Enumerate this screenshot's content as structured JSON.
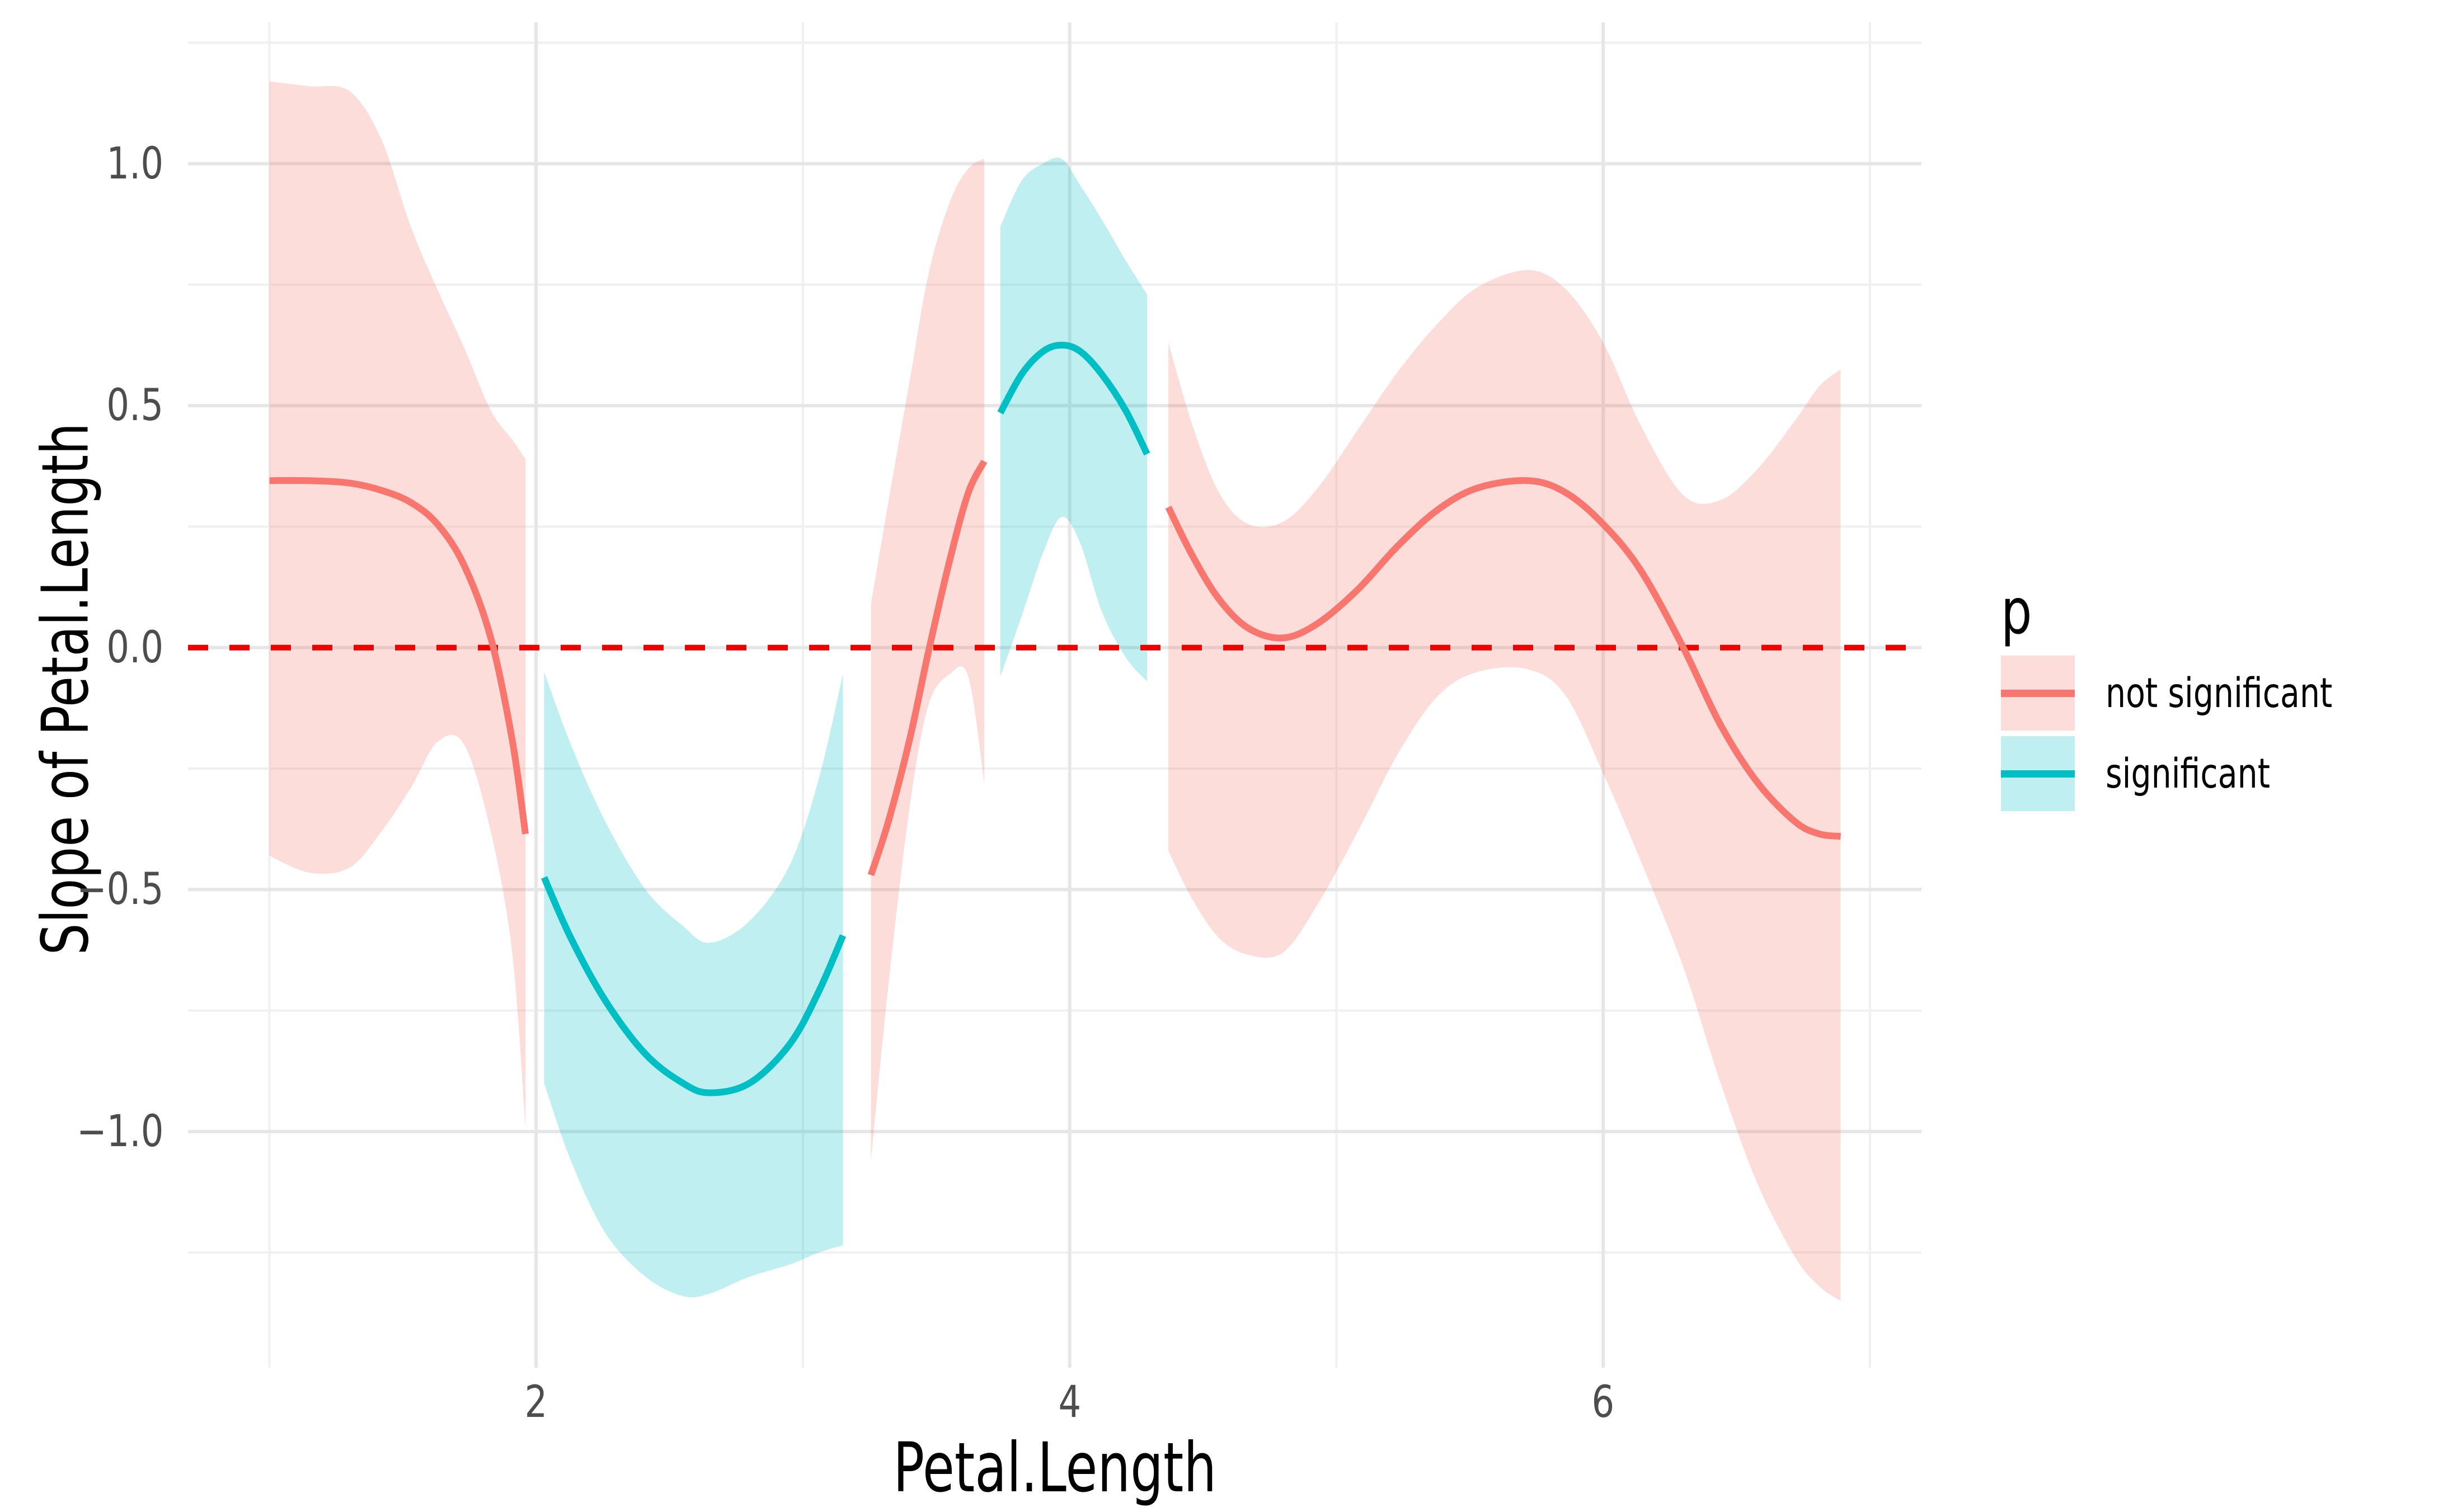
{
  "page": {
    "background": "#ffffff"
  },
  "chart_data": {
    "type": "line",
    "title": "",
    "xlabel": "Petal.Length",
    "ylabel": "Slope of Petal.Length",
    "xlim": [
      0.695,
      7.193
    ],
    "ylim": [
      -1.488,
      1.292
    ],
    "grid": {
      "on": true,
      "major_color": "#e6e6e6",
      "minor_color": "#f0f0f0",
      "major_width": 6,
      "minor_width": 4
    },
    "x_major_ticks": [
      {
        "v": 2,
        "label": "2"
      },
      {
        "v": 4,
        "label": "4"
      },
      {
        "v": 6,
        "label": "6"
      }
    ],
    "x_minor_gridlines": [
      1,
      3,
      5,
      7
    ],
    "y_major_ticks": [
      {
        "v": 1.0,
        "label": "1.0"
      },
      {
        "v": 0.5,
        "label": "0.5"
      },
      {
        "v": 0.0,
        "label": "0.0"
      },
      {
        "v": -0.5,
        "label": "−0.5"
      },
      {
        "v": -1.0,
        "label": "−1.0"
      }
    ],
    "y_minor_gridlines": [
      1.25,
      0.75,
      0.25,
      -0.25,
      -0.75,
      -1.25
    ],
    "reference_line": {
      "y": 0,
      "style": "dashed",
      "color": "#ee0000",
      "width": 10,
      "dash": [
        36,
        38
      ]
    },
    "line_width": 12,
    "legend": {
      "title": "p",
      "position": "right",
      "items": [
        {
          "group": "not significant",
          "label": "not significant",
          "line_color": "#F8766D",
          "fill_color": "rgba(248,118,109,0.25)"
        },
        {
          "group": "significant",
          "label": "significant",
          "line_color": "#00BFC4",
          "fill_color": "rgba(0,191,196,0.25)"
        }
      ]
    },
    "series": [
      {
        "group": "not significant",
        "x": [
          1.0,
          1.15,
          1.3,
          1.42,
          1.53,
          1.63,
          1.73,
          1.83,
          1.91,
          1.96
        ],
        "y": [
          0.345,
          0.345,
          0.34,
          0.325,
          0.3,
          0.255,
          0.17,
          0.02,
          -0.19,
          -0.385
        ],
        "upper": [
          1.17,
          1.16,
          1.15,
          1.05,
          0.87,
          0.74,
          0.62,
          0.49,
          0.43,
          0.39
        ],
        "lower": [
          -0.43,
          -0.465,
          -0.455,
          -0.38,
          -0.29,
          -0.195,
          -0.2,
          -0.38,
          -0.63,
          -0.99
        ]
      },
      {
        "group": "significant",
        "x": [
          2.03,
          2.13,
          2.26,
          2.41,
          2.55,
          2.65,
          2.8,
          2.95,
          3.06,
          3.15
        ],
        "y": [
          -0.475,
          -0.6,
          -0.73,
          -0.84,
          -0.9,
          -0.92,
          -0.9,
          -0.82,
          -0.71,
          -0.595
        ],
        "upper": [
          -0.05,
          -0.2,
          -0.36,
          -0.5,
          -0.575,
          -0.61,
          -0.565,
          -0.45,
          -0.27,
          -0.055
        ],
        "lower": [
          -0.9,
          -1.06,
          -1.21,
          -1.3,
          -1.34,
          -1.335,
          -1.3,
          -1.275,
          -1.25,
          -1.235
        ]
      },
      {
        "group": "not significant",
        "x": [
          3.255,
          3.32,
          3.4,
          3.47,
          3.55,
          3.62,
          3.68
        ],
        "y": [
          -0.47,
          -0.36,
          -0.19,
          -0.01,
          0.18,
          0.32,
          0.385
        ],
        "upper": [
          0.09,
          0.3,
          0.55,
          0.77,
          0.92,
          0.99,
          1.01
        ],
        "lower": [
          -1.06,
          -0.7,
          -0.33,
          -0.12,
          -0.055,
          -0.06,
          -0.28
        ]
      },
      {
        "group": "significant",
        "x": [
          3.74,
          3.82,
          3.9,
          3.97,
          4.04,
          4.12,
          4.21,
          4.29
        ],
        "y": [
          0.485,
          0.565,
          0.612,
          0.625,
          0.612,
          0.565,
          0.49,
          0.4
        ],
        "upper": [
          0.87,
          0.965,
          1.0,
          1.01,
          0.955,
          0.885,
          0.8,
          0.73
        ],
        "lower": [
          -0.06,
          0.065,
          0.195,
          0.27,
          0.215,
          0.075,
          -0.02,
          -0.07
        ]
      },
      {
        "group": "not significant",
        "x": [
          4.37,
          4.46,
          4.56,
          4.67,
          4.8,
          4.93,
          5.08,
          5.23,
          5.38,
          5.53,
          5.72,
          5.86,
          6.0,
          6.14,
          6.3,
          6.44,
          6.58,
          6.72,
          6.81,
          6.89
        ],
        "y": [
          0.29,
          0.19,
          0.1,
          0.04,
          0.02,
          0.05,
          0.12,
          0.21,
          0.285,
          0.33,
          0.345,
          0.32,
          0.255,
          0.16,
          0.0,
          -0.16,
          -0.28,
          -0.36,
          -0.385,
          -0.39
        ],
        "upper": [
          0.63,
          0.46,
          0.32,
          0.255,
          0.26,
          0.33,
          0.45,
          0.57,
          0.67,
          0.745,
          0.78,
          0.74,
          0.63,
          0.46,
          0.315,
          0.305,
          0.37,
          0.47,
          0.54,
          0.575
        ],
        "lower": [
          -0.42,
          -0.52,
          -0.6,
          -0.635,
          -0.63,
          -0.53,
          -0.38,
          -0.22,
          -0.1,
          -0.05,
          -0.045,
          -0.1,
          -0.26,
          -0.44,
          -0.66,
          -0.9,
          -1.11,
          -1.26,
          -1.32,
          -1.35
        ]
      }
    ]
  }
}
